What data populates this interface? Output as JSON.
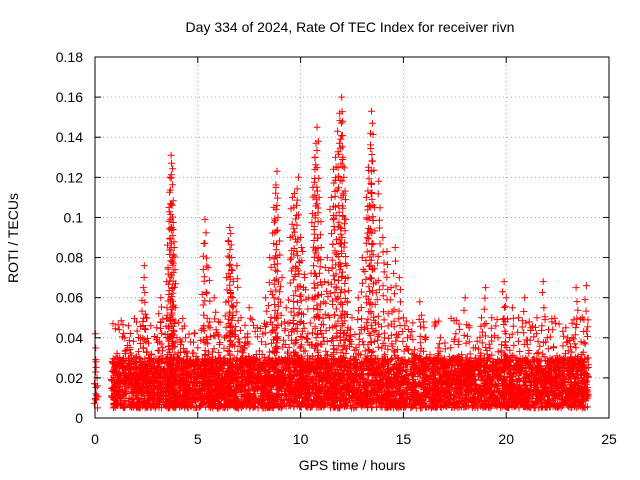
{
  "chart_data": {
    "type": "scatter",
    "title": "Day 334 of 2024, Rate Of TEC Index for receiver rivn",
    "xlabel": "GPS time / hours",
    "ylabel": "ROTI / TECUs",
    "xlim": [
      0,
      25
    ],
    "ylim": [
      0,
      0.18
    ],
    "xticks": [
      0,
      5,
      10,
      15,
      20,
      25
    ],
    "xtick_labels": [
      "0",
      "5",
      "10",
      "15",
      "20",
      "25"
    ],
    "yticks": [
      0,
      0.02,
      0.04,
      0.06,
      0.08,
      0.1,
      0.12,
      0.14,
      0.16,
      0.18
    ],
    "ytick_labels": [
      "0",
      "0.02",
      "0.04",
      "0.06",
      "0.08",
      "0.1",
      "0.12",
      "0.14",
      "0.16",
      "0.18"
    ],
    "grid": true,
    "marker": "+",
    "color": "#ff0000",
    "series": [
      {
        "name": "ROTI",
        "points": [
          [
            0.02,
            0.042
          ],
          [
            0.05,
            0.028
          ],
          [
            0.05,
            0.012
          ],
          [
            0.08,
            0.009
          ],
          [
            0.1,
            0.02
          ],
          [
            0.12,
            0.016
          ],
          [
            0.9,
            0.015
          ],
          [
            1.0,
            0.022
          ],
          [
            1.1,
            0.018
          ],
          [
            1.2,
            0.03
          ],
          [
            1.4,
            0.025
          ],
          [
            1.5,
            0.012
          ],
          [
            1.7,
            0.035
          ],
          [
            1.9,
            0.02
          ],
          [
            2.0,
            0.028
          ],
          [
            2.2,
            0.04
          ],
          [
            2.35,
            0.065
          ],
          [
            2.4,
            0.076
          ],
          [
            2.5,
            0.05
          ],
          [
            2.6,
            0.03
          ],
          [
            2.7,
            0.018
          ],
          [
            2.9,
            0.025
          ],
          [
            3.0,
            0.045
          ],
          [
            3.1,
            0.052
          ],
          [
            3.2,
            0.06
          ],
          [
            3.3,
            0.035
          ],
          [
            3.4,
            0.02
          ],
          [
            3.5,
            0.055
          ],
          [
            3.55,
            0.075
          ],
          [
            3.6,
            0.105
          ],
          [
            3.65,
            0.12
          ],
          [
            3.7,
            0.131
          ],
          [
            3.72,
            0.127
          ],
          [
            3.75,
            0.106
          ],
          [
            3.8,
            0.094
          ],
          [
            3.85,
            0.085
          ],
          [
            3.9,
            0.055
          ],
          [
            4.0,
            0.03
          ],
          [
            4.2,
            0.025
          ],
          [
            4.4,
            0.04
          ],
          [
            4.6,
            0.022
          ],
          [
            4.8,
            0.018
          ],
          [
            5.0,
            0.035
          ],
          [
            5.2,
            0.028
          ],
          [
            5.3,
            0.087
          ],
          [
            5.35,
            0.099
          ],
          [
            5.5,
            0.075
          ],
          [
            5.6,
            0.045
          ],
          [
            5.8,
            0.06
          ],
          [
            6.0,
            0.048
          ],
          [
            6.1,
            0.03
          ],
          [
            6.3,
            0.04
          ],
          [
            6.4,
            0.07
          ],
          [
            6.5,
            0.088
          ],
          [
            6.55,
            0.095
          ],
          [
            6.6,
            0.092
          ],
          [
            6.65,
            0.08
          ],
          [
            6.7,
            0.06
          ],
          [
            6.9,
            0.076
          ],
          [
            7.1,
            0.05
          ],
          [
            7.3,
            0.04
          ],
          [
            7.5,
            0.055
          ],
          [
            7.7,
            0.03
          ],
          [
            7.9,
            0.045
          ],
          [
            8.1,
            0.038
          ],
          [
            8.3,
            0.06
          ],
          [
            8.5,
            0.08
          ],
          [
            8.7,
            0.105
          ],
          [
            8.8,
            0.115
          ],
          [
            8.85,
            0.123
          ],
          [
            8.9,
            0.1
          ],
          [
            9.1,
            0.07
          ],
          [
            9.3,
            0.055
          ],
          [
            9.5,
            0.09
          ],
          [
            9.6,
            0.11
          ],
          [
            9.7,
            0.112
          ],
          [
            9.8,
            0.106
          ],
          [
            9.9,
            0.12
          ],
          [
            10.0,
            0.09
          ],
          [
            10.1,
            0.083
          ],
          [
            10.2,
            0.07
          ],
          [
            10.4,
            0.06
          ],
          [
            10.6,
            0.115
          ],
          [
            10.7,
            0.13
          ],
          [
            10.75,
            0.137
          ],
          [
            10.8,
            0.145
          ],
          [
            10.9,
            0.11
          ],
          [
            11.0,
            0.085
          ],
          [
            11.2,
            0.075
          ],
          [
            11.3,
            0.08
          ],
          [
            11.5,
            0.11
          ],
          [
            11.6,
            0.124
          ],
          [
            11.7,
            0.13
          ],
          [
            11.8,
            0.143
          ],
          [
            11.9,
            0.152
          ],
          [
            12.0,
            0.16
          ],
          [
            12.05,
            0.148
          ],
          [
            12.1,
            0.12
          ],
          [
            12.2,
            0.099
          ],
          [
            12.3,
            0.07
          ],
          [
            12.5,
            0.05
          ],
          [
            12.8,
            0.06
          ],
          [
            13.0,
            0.08
          ],
          [
            13.2,
            0.11
          ],
          [
            13.3,
            0.125
          ],
          [
            13.4,
            0.142
          ],
          [
            13.45,
            0.153
          ],
          [
            13.5,
            0.128
          ],
          [
            13.6,
            0.105
          ],
          [
            13.8,
            0.118
          ],
          [
            14.0,
            0.09
          ],
          [
            14.2,
            0.083
          ],
          [
            14.4,
            0.065
          ],
          [
            14.6,
            0.085
          ],
          [
            14.8,
            0.07
          ],
          [
            15.0,
            0.05
          ],
          [
            15.2,
            0.04
          ],
          [
            15.4,
            0.028
          ],
          [
            15.6,
            0.03
          ],
          [
            15.8,
            0.058
          ],
          [
            16.0,
            0.045
          ],
          [
            16.2,
            0.025
          ],
          [
            16.5,
            0.03
          ],
          [
            16.8,
            0.04
          ],
          [
            17.0,
            0.025
          ],
          [
            17.3,
            0.035
          ],
          [
            17.6,
            0.03
          ],
          [
            18.0,
            0.06
          ],
          [
            18.2,
            0.045
          ],
          [
            18.5,
            0.035
          ],
          [
            18.8,
            0.05
          ],
          [
            19.0,
            0.065
          ],
          [
            19.3,
            0.05
          ],
          [
            19.6,
            0.04
          ],
          [
            19.9,
            0.068
          ],
          [
            20.0,
            0.06
          ],
          [
            20.3,
            0.055
          ],
          [
            20.6,
            0.05
          ],
          [
            20.9,
            0.06
          ],
          [
            21.2,
            0.045
          ],
          [
            21.5,
            0.05
          ],
          [
            21.8,
            0.068
          ],
          [
            22.0,
            0.04
          ],
          [
            22.3,
            0.035
          ],
          [
            22.6,
            0.03
          ],
          [
            22.9,
            0.045
          ],
          [
            23.2,
            0.04
          ],
          [
            23.4,
            0.065
          ],
          [
            23.7,
            0.05
          ],
          [
            23.9,
            0.066
          ]
        ]
      }
    ],
    "dense_band": {
      "x_start": 0.8,
      "x_end": 24.0,
      "y_floor": 0.005,
      "y_typical_top": 0.03
    }
  }
}
